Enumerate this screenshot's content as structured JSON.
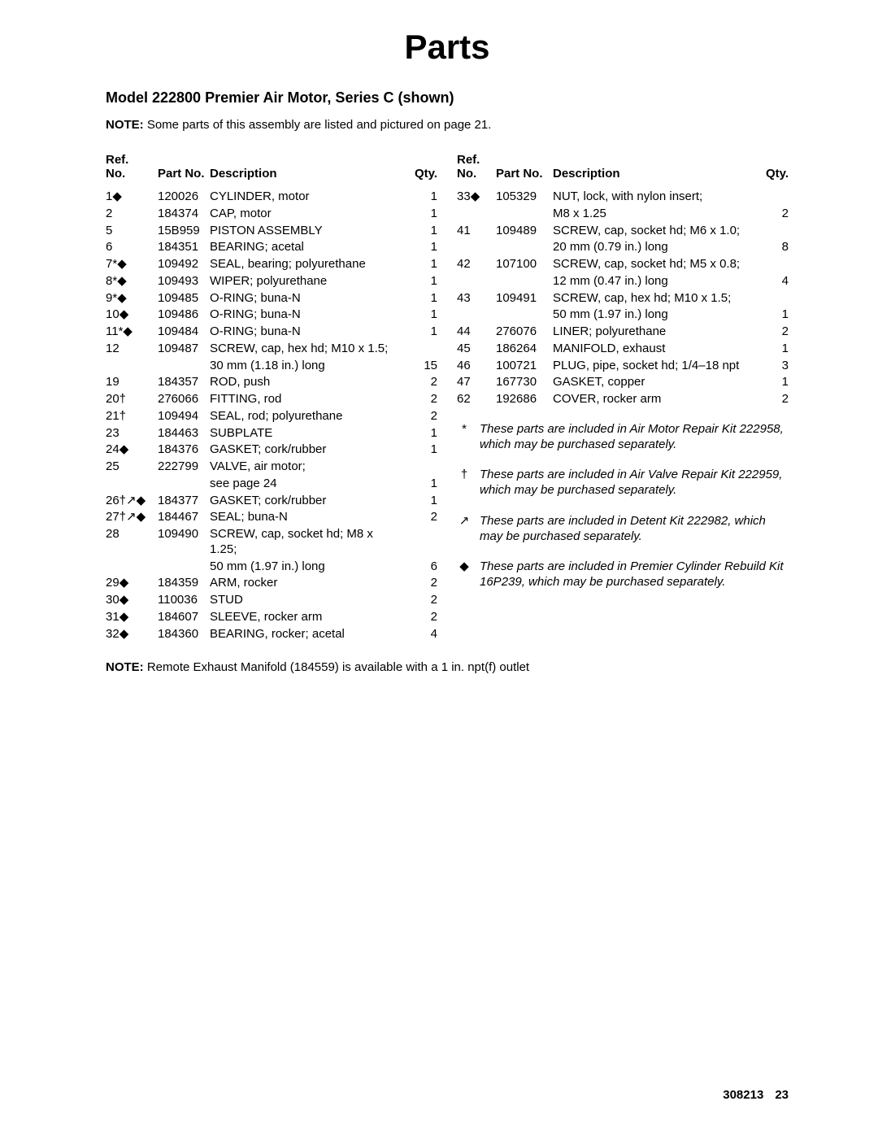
{
  "page_title": "Parts",
  "model_title": "Model 222800 Premier Air Motor, Series C (shown)",
  "note_top_label": "NOTE:",
  "note_top_text": " Some parts of this assembly are listed and pictured on page 21.",
  "headers": {
    "ref1": "Ref.",
    "ref2": "No.",
    "part": "Part No.",
    "desc": "Description",
    "qty": "Qty."
  },
  "left_rows": [
    {
      "ref": "1",
      "sym": "◆",
      "part": "120026",
      "desc": "CYLINDER, motor",
      "qty": "1"
    },
    {
      "ref": "2",
      "sym": "",
      "part": "184374",
      "desc": "CAP, motor",
      "qty": "1"
    },
    {
      "ref": "5",
      "sym": "",
      "part": "15B959",
      "desc": "PISTON ASSEMBLY",
      "qty": "1"
    },
    {
      "ref": "6",
      "sym": "",
      "part": "184351",
      "desc": "BEARING; acetal",
      "qty": "1"
    },
    {
      "ref": "7*",
      "sym": "◆",
      "part": "109492",
      "desc": "SEAL, bearing; polyurethane",
      "qty": "1"
    },
    {
      "ref": "8*",
      "sym": "◆",
      "part": "109493",
      "desc": "WIPER; polyurethane",
      "qty": "1"
    },
    {
      "ref": "9*",
      "sym": "◆",
      "part": "109485",
      "desc": "O-RING; buna-N",
      "qty": "1"
    },
    {
      "ref": "10",
      "sym": "◆",
      "part": "109486",
      "desc": "O-RING; buna-N",
      "qty": "1"
    },
    {
      "ref": "11*",
      "sym": "◆",
      "part": "109484",
      "desc": "O-RING; buna-N",
      "qty": "1"
    },
    {
      "ref": "12",
      "sym": "",
      "part": "109487",
      "desc": "SCREW, cap, hex hd; M10 x 1.5;",
      "qty": ""
    },
    {
      "ref": "",
      "sym": "",
      "part": "",
      "desc": "30 mm (1.18 in.) long",
      "qty": "15"
    },
    {
      "ref": "19",
      "sym": "",
      "part": "184357",
      "desc": "ROD, push",
      "qty": "2"
    },
    {
      "ref": "20†",
      "sym": "",
      "part": "276066",
      "desc": "FITTING, rod",
      "qty": "2"
    },
    {
      "ref": "21†",
      "sym": "",
      "part": "109494",
      "desc": "SEAL, rod; polyurethane",
      "qty": "2"
    },
    {
      "ref": "23",
      "sym": "",
      "part": "184463",
      "desc": "SUBPLATE",
      "qty": "1"
    },
    {
      "ref": "24",
      "sym": "◆",
      "part": "184376",
      "desc": "GASKET; cork/rubber",
      "qty": "1"
    },
    {
      "ref": "25",
      "sym": "",
      "part": "222799",
      "desc": "VALVE, air motor;",
      "qty": ""
    },
    {
      "ref": "",
      "sym": "",
      "part": "",
      "desc": "see page 24",
      "qty": "1"
    },
    {
      "ref": "26†",
      "sym": "↗◆",
      "part": "184377",
      "desc": "GASKET; cork/rubber",
      "qty": "1"
    },
    {
      "ref": "27†",
      "sym": "↗◆",
      "part": "184467",
      "desc": "SEAL; buna-N",
      "qty": "2"
    },
    {
      "ref": "28",
      "sym": "",
      "part": "109490",
      "desc": "SCREW, cap, socket hd; M8 x 1.25;",
      "qty": ""
    },
    {
      "ref": "",
      "sym": "",
      "part": "",
      "desc": "50 mm (1.97 in.) long",
      "qty": "6"
    },
    {
      "ref": "29",
      "sym": "◆",
      "part": "184359",
      "desc": "ARM, rocker",
      "qty": "2"
    },
    {
      "ref": "30",
      "sym": "◆",
      "part": "110036",
      "desc": "STUD",
      "qty": "2"
    },
    {
      "ref": "31",
      "sym": "◆",
      "part": "184607",
      "desc": "SLEEVE, rocker arm",
      "qty": "2"
    },
    {
      "ref": "32",
      "sym": "◆",
      "part": "184360",
      "desc": "BEARING, rocker; acetal",
      "qty": "4"
    }
  ],
  "right_rows": [
    {
      "ref": "33",
      "sym": "◆",
      "part": "105329",
      "desc": "NUT, lock, with nylon insert;",
      "qty": ""
    },
    {
      "ref": "",
      "sym": "",
      "part": "",
      "desc": "M8 x 1.25",
      "qty": "2"
    },
    {
      "ref": "41",
      "sym": "",
      "part": "109489",
      "desc": "SCREW, cap, socket hd; M6 x 1.0;",
      "qty": ""
    },
    {
      "ref": "",
      "sym": "",
      "part": "",
      "desc": "20 mm (0.79 in.) long",
      "qty": "8"
    },
    {
      "ref": "42",
      "sym": "",
      "part": "107100",
      "desc": "SCREW, cap, socket hd; M5 x 0.8;",
      "qty": ""
    },
    {
      "ref": "",
      "sym": "",
      "part": "",
      "desc": "12 mm (0.47 in.) long",
      "qty": "4"
    },
    {
      "ref": "43",
      "sym": "",
      "part": "109491",
      "desc": "SCREW, cap, hex hd; M10 x 1.5;",
      "qty": ""
    },
    {
      "ref": "",
      "sym": "",
      "part": "",
      "desc": "50 mm (1.97 in.) long",
      "qty": "1"
    },
    {
      "ref": "44",
      "sym": "",
      "part": "276076",
      "desc": "LINER; polyurethane",
      "qty": "2"
    },
    {
      "ref": "45",
      "sym": "",
      "part": "186264",
      "desc": "MANIFOLD, exhaust",
      "qty": "1"
    },
    {
      "ref": "46",
      "sym": "",
      "part": "100721",
      "desc": "PLUG, pipe, socket hd; 1/4–18 npt",
      "qty": "3"
    },
    {
      "ref": "47",
      "sym": "",
      "part": "167730",
      "desc": "GASKET, copper",
      "qty": "1"
    },
    {
      "ref": "62",
      "sym": "",
      "part": "192686",
      "desc": "COVER, rocker arm",
      "qty": "2"
    }
  ],
  "kit_notes": [
    {
      "marker": "*",
      "text": "These parts are included in Air Motor Repair Kit 222958, which may be purchased separately."
    },
    {
      "marker": "†",
      "text": "These parts are included in Air Valve Repair Kit 222959, which may be purchased separately."
    },
    {
      "marker": "↗",
      "text": "These parts are included in Detent Kit 222982, which may be purchased separately."
    },
    {
      "marker": "◆",
      "text": "These parts are included in Premier Cylinder Rebuild Kit 16P239, which may be purchased separately."
    }
  ],
  "note_bottom_label": "NOTE:",
  "note_bottom_text": " Remote Exhaust Manifold (184559) is available with a 1 in. npt(f) outlet",
  "footer_doc": "308213",
  "footer_page": "23"
}
